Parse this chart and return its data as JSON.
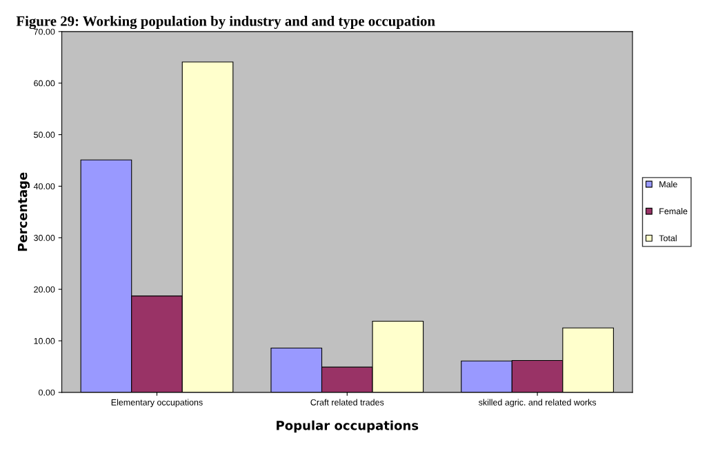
{
  "chart_data": {
    "type": "bar",
    "title": "Figure 29: Working population by industry and and type occupation",
    "xlabel": "Popular occupations",
    "ylabel": "Percentage",
    "categories": [
      "Elementary occupations",
      "Craft related trades",
      "skilled agric. and related works"
    ],
    "series": [
      {
        "name": "Male",
        "color": "#9999ff",
        "values": [
          45.1,
          8.6,
          6.1
        ]
      },
      {
        "name": "Female",
        "color": "#993366",
        "values": [
          18.7,
          4.9,
          6.2
        ]
      },
      {
        "name": "Total",
        "color": "#ffffcc",
        "values": [
          64.1,
          13.8,
          12.5
        ]
      }
    ],
    "ylim": [
      0,
      70
    ],
    "yticks": [
      {
        "value": 0,
        "label": "0.00"
      },
      {
        "value": 10,
        "label": "10.00"
      },
      {
        "value": 20,
        "label": "20.00"
      },
      {
        "value": 30,
        "label": "30.00"
      },
      {
        "value": 40,
        "label": "40.00"
      },
      {
        "value": 50,
        "label": "50.00"
      },
      {
        "value": 60,
        "label": "60.00"
      },
      {
        "value": 70,
        "label": "70.00"
      }
    ],
    "grid": false,
    "legend": "right"
  }
}
